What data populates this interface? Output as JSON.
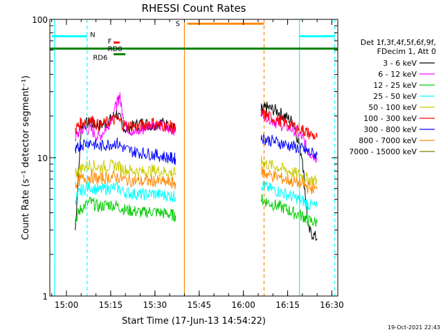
{
  "chart_data": {
    "type": "line",
    "title": "RHESSI Count Rates",
    "xlabel": "Start Time (17-Jun-13 14:54:22)",
    "ylabel": "Count Rate (s⁻¹ detector segment⁻¹)",
    "yscale": "log",
    "ylim": [
      1,
      100
    ],
    "xlim": [
      "14:54:22",
      "16:32:00"
    ],
    "x_ticks": [
      "15:00",
      "15:15",
      "15:30",
      "15:45",
      "16:00",
      "16:15",
      "16:30"
    ],
    "y_ticks": [
      "1",
      "10",
      "100"
    ],
    "grid": false,
    "legend_position": "right",
    "legend_header": [
      "Det 1f,3f,4f,5f,6f,9f,",
      "FDecim 1, Att 0"
    ],
    "series": [
      {
        "name": "3 - 6 keV",
        "color": "#000000",
        "segments": [
          {
            "x": [
              "15:03",
              "15:05",
              "15:08",
              "15:11",
              "15:14",
              "15:17",
              "15:20",
              "15:23",
              "15:26",
              "15:29",
              "15:32",
              "15:35",
              "15:37"
            ],
            "y": [
              3.0,
              17,
              18,
              17,
              18,
              21,
              16,
              17,
              18,
              17,
              18,
              17,
              16
            ]
          },
          {
            "x": [
              "16:06",
              "16:08",
              "16:11",
              "16:14",
              "16:17",
              "16:20",
              "16:22",
              "16:25"
            ],
            "y": [
              22,
              23,
              22,
              20,
              18,
              10,
              3,
              2.6
            ]
          }
        ]
      },
      {
        "name": "6 - 12 keV",
        "color": "#ff00ff",
        "segments": [
          {
            "x": [
              "15:03",
              "15:05",
              "15:08",
              "15:11",
              "15:14",
              "15:17",
              "15:18",
              "15:20",
              "15:23",
              "15:26",
              "15:29",
              "15:32",
              "15:35",
              "15:37"
            ],
            "y": [
              14,
              16,
              16,
              14,
              17,
              24,
              28,
              17,
              15,
              16,
              18,
              17,
              16,
              16
            ]
          },
          {
            "x": [
              "16:06",
              "16:08",
              "16:11",
              "16:14",
              "16:17",
              "16:20",
              "16:22",
              "16:25"
            ],
            "y": [
              21,
              20,
              18,
              17,
              16,
              14,
              11,
              10
            ]
          }
        ]
      },
      {
        "name": "12 - 25 keV",
        "color": "#00cc00",
        "segments": [
          {
            "x": [
              "15:03",
              "15:05",
              "15:08",
              "15:11",
              "15:14",
              "15:17",
              "15:20",
              "15:23",
              "15:26",
              "15:29",
              "15:32",
              "15:35",
              "15:37"
            ],
            "y": [
              3.6,
              4.3,
              4.8,
              4.4,
              4.6,
              4.5,
              4.2,
              4.1,
              4.0,
              4.1,
              4.0,
              3.9,
              3.8
            ]
          },
          {
            "x": [
              "16:06",
              "16:08",
              "16:11",
              "16:14",
              "16:17",
              "16:20",
              "16:22",
              "16:25"
            ],
            "y": [
              5.0,
              4.8,
              4.5,
              4.3,
              4.0,
              3.8,
              3.5,
              3.4
            ]
          }
        ]
      },
      {
        "name": "25 - 50 keV",
        "color": "#00ffff",
        "segments": [
          {
            "x": [
              "15:03",
              "15:05",
              "15:08",
              "15:11",
              "15:14",
              "15:17",
              "15:20",
              "15:23",
              "15:26",
              "15:29",
              "15:32",
              "15:35",
              "15:37"
            ],
            "y": [
              5.0,
              5.8,
              6.2,
              5.8,
              6.0,
              6.1,
              5.6,
              5.5,
              5.4,
              5.5,
              5.4,
              5.3,
              5.2
            ]
          },
          {
            "x": [
              "16:06",
              "16:08",
              "16:11",
              "16:14",
              "16:17",
              "16:20",
              "16:22",
              "16:25"
            ],
            "y": [
              6.4,
              6.1,
              5.8,
              5.5,
              5.2,
              4.9,
              4.6,
              4.4
            ]
          }
        ]
      },
      {
        "name": "50 - 100 keV",
        "color": "#cccc00",
        "segments": [
          {
            "x": [
              "15:03",
              "15:05",
              "15:08",
              "15:11",
              "15:14",
              "15:17",
              "15:20",
              "15:23",
              "15:26",
              "15:29",
              "15:32",
              "15:35",
              "15:37"
            ],
            "y": [
              7.6,
              8.4,
              8.9,
              8.5,
              8.7,
              8.8,
              8.2,
              8.0,
              7.9,
              8.1,
              8.0,
              7.8,
              7.7
            ]
          },
          {
            "x": [
              "16:06",
              "16:08",
              "16:11",
              "16:14",
              "16:17",
              "16:20",
              "16:22",
              "16:25"
            ],
            "y": [
              9.4,
              9.0,
              8.6,
              8.2,
              7.8,
              7.4,
              7.0,
              6.8
            ]
          }
        ]
      },
      {
        "name": "100 - 300 keV",
        "color": "#ff0000",
        "segments": [
          {
            "x": [
              "15:03",
              "15:05",
              "15:08",
              "15:11",
              "15:14",
              "15:17",
              "15:20",
              "15:23",
              "15:26",
              "15:29",
              "15:32",
              "15:35",
              "15:37"
            ],
            "y": [
              16,
              18,
              19,
              17,
              18,
              19,
              17,
              17,
              17,
              18,
              17,
              17,
              16
            ]
          },
          {
            "x": [
              "16:06",
              "16:08",
              "16:11",
              "16:14",
              "16:17",
              "16:20",
              "16:22",
              "16:25"
            ],
            "y": [
              21,
              20,
              19,
              18,
              17,
              16,
              15,
              14
            ]
          }
        ]
      },
      {
        "name": "300 - 800 keV",
        "color": "#0000ff",
        "segments": [
          {
            "x": [
              "15:03",
              "15:05",
              "15:08",
              "15:11",
              "15:14",
              "15:17",
              "15:20",
              "15:23",
              "15:26",
              "15:29",
              "15:32",
              "15:35",
              "15:37"
            ],
            "y": [
              11,
              12.5,
              13,
              12,
              12.5,
              12.8,
              11.5,
              11,
              10.8,
              10.6,
              10.3,
              10,
              9.8
            ]
          },
          {
            "x": [
              "16:06",
              "16:08",
              "16:11",
              "16:14",
              "16:17",
              "16:20",
              "16:22",
              "16:25"
            ],
            "y": [
              14,
              13.5,
              13,
              12.5,
              12,
              11.5,
              11,
              10.5
            ]
          }
        ]
      },
      {
        "name": "800 - 7000 keV",
        "color": "#ff8800",
        "segments": [
          {
            "x": [
              "15:03",
              "15:05",
              "15:08",
              "15:11",
              "15:14",
              "15:17",
              "15:20",
              "15:23",
              "15:26",
              "15:29",
              "15:32",
              "15:35",
              "15:37"
            ],
            "y": [
              6.4,
              7.0,
              7.3,
              7.0,
              7.2,
              7.3,
              6.9,
              6.8,
              6.7,
              6.8,
              6.7,
              6.6,
              6.5
            ]
          },
          {
            "x": [
              "16:06",
              "16:08",
              "16:11",
              "16:14",
              "16:17",
              "16:20",
              "16:22",
              "16:25"
            ],
            "y": [
              8.0,
              7.6,
              7.3,
              7.0,
              6.7,
              6.4,
              6.1,
              5.9
            ]
          }
        ]
      },
      {
        "name": "7000 - 15000 keV",
        "color": "#808000",
        "segments": []
      }
    ],
    "markers": {
      "vlines": [
        {
          "x": "14:56",
          "color": "#00ffff",
          "style": "solid"
        },
        {
          "x": "15:07",
          "color": "#00ffff",
          "style": "dashed"
        },
        {
          "x": "15:40",
          "color": "#ff8800",
          "style": "solid"
        },
        {
          "x": "16:07",
          "color": "#ff8800",
          "style": "dashed"
        },
        {
          "x": "16:19",
          "color": "#00ffff",
          "style": "solid"
        },
        {
          "x": "16:31",
          "color": "#00ffff",
          "style": "dashed"
        }
      ],
      "bars": [
        {
          "label": "N",
          "color": "#00ffff",
          "x_start": "14:55",
          "x_end": "15:07",
          "y": 75.5,
          "label_x": "15:08",
          "label_y": 78
        },
        {
          "label": "",
          "color": "#00ffff",
          "x_start": "16:19",
          "x_end": "16:31",
          "y": 75.5,
          "label_x": "",
          "label_y": 0
        },
        {
          "label": "S",
          "color": "#ff8800",
          "x_start": "15:41",
          "x_end": "16:07",
          "y": 93,
          "label_x": "15:37",
          "label_y": 94
        },
        {
          "label": "F",
          "color": "#ff0000",
          "x_start": "15:16",
          "x_end": "15:18",
          "y": 68,
          "label_x": "15:14",
          "label_y": 70
        },
        {
          "label": "RD0",
          "color": "#008000",
          "x_start": "14:54:22",
          "x_end": "16:32",
          "y": 61.5,
          "label_x": "15:14",
          "label_y": 61.5
        },
        {
          "label": "RD6",
          "color": "#008000",
          "x_start": "15:16",
          "x_end": "15:20",
          "y": 56,
          "label_x": "15:09",
          "label_y": 53.5
        }
      ]
    }
  },
  "footer": {
    "timestamp": "19-Oct-2021 22:43"
  }
}
